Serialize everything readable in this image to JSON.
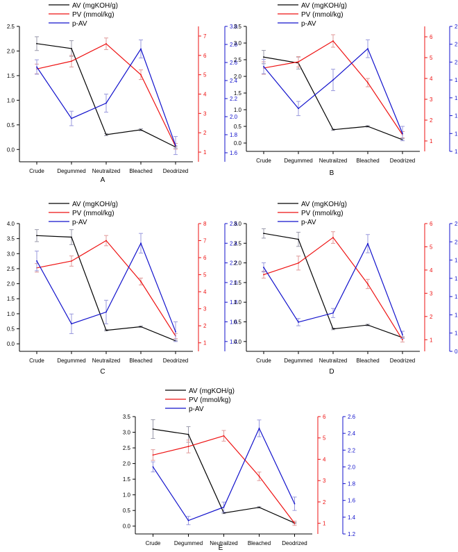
{
  "colors": {
    "av": "#000000",
    "pv": "#ee1111",
    "pav": "#1111cc",
    "err_av": "#9999aa",
    "err_pv": "#e09999",
    "err_pav": "#9999dd"
  },
  "chart_data": [
    {
      "type": "line",
      "panel_label": "A",
      "categories": [
        "Crude",
        "Degummed",
        "Neutrailzed",
        "Bleached",
        "Deodrized"
      ],
      "legend": [
        "AV (mgKOH/g)",
        "PV (mmol/kg)",
        "p-AV"
      ],
      "axes": {
        "left": {
          "min": -0.25,
          "max": 2.5,
          "ticks": [
            "0.0",
            "0.5",
            "1.0",
            "1.5",
            "2.0",
            "2.5"
          ]
        },
        "right1": {
          "min": 0.5,
          "max": 7.5,
          "ticks": [
            "1",
            "2",
            "3",
            "4",
            "5",
            "6",
            "7"
          ]
        },
        "right2": {
          "min": 1.5,
          "max": 3.0,
          "ticks": [
            "1.6",
            "1.8",
            "2.0",
            "2.2",
            "2.4",
            "2.6",
            "2.8",
            "3.0"
          ]
        }
      },
      "series": [
        {
          "name": "AV (mgKOH/g)",
          "axis": "left",
          "values": [
            2.15,
            2.05,
            0.3,
            0.4,
            0.05
          ],
          "errors": [
            0.14,
            0.16,
            0.02,
            0.02,
            0.02
          ]
        },
        {
          "name": "PV (mmol/kg)",
          "axis": "right1",
          "values": [
            5.3,
            5.7,
            6.6,
            5.0,
            1.3
          ],
          "errors": [
            0.25,
            0.3,
            0.3,
            0.25,
            0.15
          ]
        },
        {
          "name": "p-AV",
          "axis": "right2",
          "values": [
            2.55,
            1.98,
            2.15,
            2.75,
            1.68
          ],
          "errors": [
            0.08,
            0.08,
            0.1,
            0.1,
            0.1
          ]
        }
      ]
    },
    {
      "type": "line",
      "panel_label": "B",
      "categories": [
        "Crude",
        "Degummed",
        "Neutrailzed",
        "Bleached",
        "Deodrized"
      ],
      "legend": [
        "AV (mgKOH/g)",
        "PV (mmol/kg)",
        "p-AV"
      ],
      "axes": {
        "left": {
          "min": -0.25,
          "max": 3.5,
          "ticks": [
            "0.0",
            "0.5",
            "1.0",
            "1.5",
            "2.0",
            "2.5",
            "3.0",
            "3.5"
          ]
        },
        "right1": {
          "min": 0.5,
          "max": 6.5,
          "ticks": [
            "1",
            "2",
            "3",
            "4",
            "5",
            "6"
          ]
        },
        "right2": {
          "min": 1.0,
          "max": 2.4,
          "ticks": [
            "1.0",
            "1.2",
            "1.4",
            "1.6",
            "1.8",
            "2.0",
            "2.2",
            "2.4"
          ]
        }
      },
      "series": [
        {
          "name": "AV (mgKOH/g)",
          "axis": "left",
          "values": [
            2.58,
            2.4,
            0.4,
            0.5,
            0.1
          ],
          "errors": [
            0.2,
            0.18,
            0.02,
            0.02,
            0.03
          ]
        },
        {
          "name": "PV (mmol/kg)",
          "axis": "right1",
          "values": [
            4.5,
            4.8,
            5.8,
            3.8,
            1.3
          ],
          "errors": [
            0.3,
            0.25,
            0.3,
            0.2,
            0.15
          ]
        },
        {
          "name": "p-AV",
          "axis": "right2",
          "values": [
            1.95,
            1.48,
            1.8,
            2.15,
            1.2
          ],
          "errors": [
            0.08,
            0.08,
            0.12,
            0.1,
            0.08
          ]
        }
      ]
    },
    {
      "type": "line",
      "panel_label": "C",
      "categories": [
        "Crude",
        "Degummed",
        "Neutrailzed",
        "Bleached",
        "Deodrized"
      ],
      "legend": [
        "AV (mgKOH/g)",
        "PV (mmol/kg)",
        "p-AV"
      ],
      "axes": {
        "left": {
          "min": -0.25,
          "max": 4.0,
          "ticks": [
            "0.0",
            "0.5",
            "1.0",
            "1.5",
            "2.0",
            "2.5",
            "3.0",
            "3.5",
            "4.0"
          ]
        },
        "right1": {
          "min": 0.5,
          "max": 8.0,
          "ticks": [
            "1",
            "2",
            "3",
            "4",
            "5",
            "6",
            "7",
            "8"
          ]
        },
        "right2": {
          "min": 1.3,
          "max": 2.6,
          "ticks": [
            "1.4",
            "1.6",
            "1.8",
            "2.0",
            "2.2",
            "2.4",
            "2.6"
          ]
        }
      },
      "series": [
        {
          "name": "AV (mgKOH/g)",
          "axis": "left",
          "values": [
            3.6,
            3.55,
            0.45,
            0.57,
            0.1
          ],
          "errors": [
            0.2,
            0.25,
            0.02,
            0.02,
            0.02
          ]
        },
        {
          "name": "PV (mmol/kg)",
          "axis": "right1",
          "values": [
            5.4,
            5.8,
            7.0,
            4.6,
            1.4
          ],
          "errors": [
            0.25,
            0.3,
            0.3,
            0.2,
            0.15
          ]
        },
        {
          "name": "p-AV",
          "axis": "right2",
          "values": [
            2.22,
            1.58,
            1.7,
            2.4,
            1.5
          ],
          "errors": [
            0.1,
            0.1,
            0.12,
            0.1,
            0.1
          ]
        }
      ]
    },
    {
      "type": "line",
      "panel_label": "D",
      "categories": [
        "Crude",
        "Degummed",
        "Neutrailzed",
        "Bleached",
        "Deodrized"
      ],
      "legend": [
        "AV (mgKOH/g)",
        "PV (mmol/kg)",
        "p-AV"
      ],
      "axes": {
        "left": {
          "min": -0.25,
          "max": 3.0,
          "ticks": [
            "0.0",
            "0.5",
            "1.0",
            "1.5",
            "2.0",
            "2.5",
            "3.0"
          ]
        },
        "right1": {
          "min": 0.5,
          "max": 6.0,
          "ticks": [
            "1",
            "2",
            "3",
            "4",
            "5",
            "6"
          ]
        },
        "right2": {
          "min": 0.8,
          "max": 2.2,
          "ticks": [
            "0.8",
            "1.0",
            "1.2",
            "1.4",
            "1.6",
            "1.8",
            "2.0",
            "2.2"
          ]
        }
      },
      "series": [
        {
          "name": "AV (mgKOH/g)",
          "axis": "left",
          "values": [
            2.75,
            2.6,
            0.32,
            0.42,
            0.1
          ],
          "errors": [
            0.12,
            0.18,
            0.02,
            0.02,
            0.02
          ]
        },
        {
          "name": "PV (mmol/kg)",
          "axis": "right1",
          "values": [
            3.8,
            4.3,
            5.4,
            3.4,
            1.0
          ],
          "errors": [
            0.15,
            0.3,
            0.25,
            0.2,
            0.1
          ]
        },
        {
          "name": "p-AV",
          "axis": "right2",
          "values": [
            1.72,
            1.12,
            1.22,
            1.98,
            0.98
          ],
          "errors": [
            0.05,
            0.04,
            0.05,
            0.1,
            0.04
          ]
        }
      ]
    },
    {
      "type": "line",
      "panel_label": "E",
      "categories": [
        "Crude",
        "Degummed",
        "Neutrailzed",
        "Bleached",
        "Deodrized"
      ],
      "legend": [
        "AV (mgKOH/g)",
        "PV (mmol/kg)",
        "p-AV"
      ],
      "axes": {
        "left": {
          "min": -0.25,
          "max": 3.5,
          "ticks": [
            "0.0",
            "0.5",
            "1.0",
            "1.5",
            "2.0",
            "2.5",
            "3.0",
            "3.5"
          ]
        },
        "right1": {
          "min": 0.5,
          "max": 6.0,
          "ticks": [
            "1",
            "2",
            "3",
            "4",
            "5",
            "6"
          ]
        },
        "right2": {
          "min": 1.2,
          "max": 2.6,
          "ticks": [
            "1.2",
            "1.4",
            "1.6",
            "1.8",
            "2.0",
            "2.2",
            "2.4",
            "2.6"
          ]
        }
      },
      "series": [
        {
          "name": "AV (mgKOH/g)",
          "axis": "left",
          "values": [
            3.1,
            2.93,
            0.42,
            0.6,
            0.1
          ],
          "errors": [
            0.3,
            0.25,
            0.02,
            0.02,
            0.02
          ]
        },
        {
          "name": "PV (mmol/kg)",
          "axis": "right1",
          "values": [
            4.2,
            4.6,
            5.1,
            3.2,
            1.0
          ],
          "errors": [
            0.25,
            0.3,
            0.25,
            0.2,
            0.1
          ]
        },
        {
          "name": "p-AV",
          "axis": "right2",
          "values": [
            2.0,
            1.36,
            1.52,
            2.46,
            1.56
          ],
          "errors": [
            0.06,
            0.05,
            0.06,
            0.1,
            0.08
          ]
        }
      ]
    }
  ]
}
